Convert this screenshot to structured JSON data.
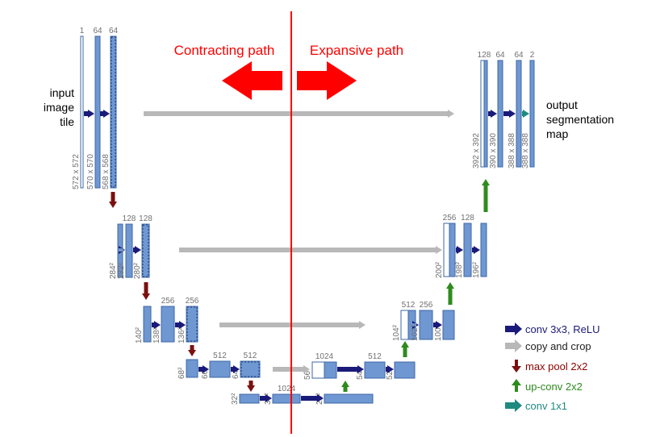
{
  "header": {
    "left_title": "Contracting path",
    "right_title": "Expansive path",
    "title_color": "#ff0000"
  },
  "side_labels": {
    "input": [
      "input",
      "image",
      "tile"
    ],
    "output": [
      "output",
      "segmentation",
      "map"
    ]
  },
  "colors": {
    "block_fill": "#6f97d1",
    "block_stroke": "#3e67a6",
    "conv_arrow": "#1a1a7a",
    "copy_arrow": "#b8b8b8",
    "pool_arrow": "#7a1010",
    "upconv_arrow": "#2e8b1e",
    "conv1x1_arrow": "#1f8a80",
    "divider": "#ff0000",
    "label_gray": "#707070"
  },
  "levels": [
    {
      "name": "level-1",
      "blocks": [
        {
          "channels": "1",
          "size": "572 x 572",
          "style": "thin"
        },
        {
          "channels": "64",
          "size": "570 x 570",
          "style": "full"
        },
        {
          "channels": "64",
          "size": "568 x 568",
          "style": "dashed"
        },
        {
          "channels": "128",
          "size": "392 x 392",
          "style": "hollow"
        },
        {
          "channels": "64",
          "size": "390 x 390",
          "style": "full"
        },
        {
          "channels": "64",
          "size": "388 x 388",
          "style": "full"
        },
        {
          "channels": "2",
          "size": "388 x 388",
          "style": "full"
        }
      ]
    },
    {
      "name": "level-2",
      "blocks": [
        {
          "channels": "",
          "size": "284²",
          "style": "full"
        },
        {
          "channels": "128",
          "size": "282²",
          "style": "full"
        },
        {
          "channels": "128",
          "size": "280²",
          "style": "dashed"
        },
        {
          "channels": "256",
          "size": "200²",
          "style": "hollow"
        },
        {
          "channels": "128",
          "size": "198²",
          "style": "full"
        },
        {
          "channels": "",
          "size": "196²",
          "style": "full"
        }
      ]
    },
    {
      "name": "level-3",
      "blocks": [
        {
          "channels": "",
          "size": "140²",
          "style": "full"
        },
        {
          "channels": "256",
          "size": "138²",
          "style": "full"
        },
        {
          "channels": "256",
          "size": "136²",
          "style": "dashed"
        },
        {
          "channels": "512",
          "size": "104²",
          "style": "hollow"
        },
        {
          "channels": "256",
          "size": "102²",
          "style": "full"
        },
        {
          "channels": "",
          "size": "100²",
          "style": "full"
        }
      ]
    },
    {
      "name": "level-4",
      "blocks": [
        {
          "channels": "",
          "size": "68²",
          "style": "full"
        },
        {
          "channels": "512",
          "size": "66²",
          "style": "full"
        },
        {
          "channels": "512",
          "size": "64²",
          "style": "dashed"
        },
        {
          "channels": "1024",
          "size": "56²",
          "style": "hollow"
        },
        {
          "channels": "512",
          "size": "54²",
          "style": "full"
        },
        {
          "channels": "",
          "size": "52²",
          "style": "full"
        }
      ]
    },
    {
      "name": "level-5",
      "blocks": [
        {
          "channels": "",
          "size": "32²",
          "style": "full"
        },
        {
          "channels": "1024",
          "size": "30²",
          "style": "full"
        },
        {
          "channels": "",
          "size": "28²",
          "style": "full"
        }
      ]
    }
  ],
  "legend": [
    {
      "label": "conv 3x3, ReLU",
      "color": "#1a1a7a",
      "icon": "right-arrow-icon",
      "text_color": "#1a1a7a"
    },
    {
      "label": "copy and crop",
      "color": "#b8b8b8",
      "icon": "right-arrow-icon",
      "text_color": "#222222"
    },
    {
      "label": "max pool 2x2",
      "color": "#7a1010",
      "icon": "down-arrow-icon",
      "text_color": "#8b0000"
    },
    {
      "label": "up-conv 2x2",
      "color": "#2e8b1e",
      "icon": "up-arrow-icon",
      "text_color": "#2e8b1e"
    },
    {
      "label": "conv 1x1",
      "color": "#1f8a80",
      "icon": "right-arrow-icon",
      "text_color": "#1f8a80"
    }
  ]
}
